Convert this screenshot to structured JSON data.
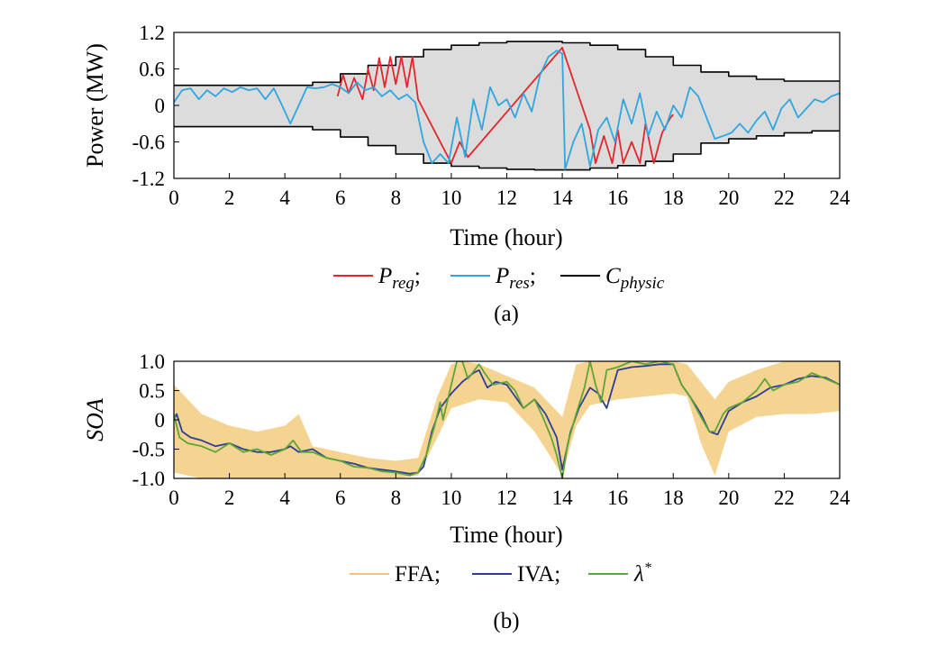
{
  "chart_data": [
    {
      "panel": "(a)",
      "type": "line",
      "xlabel": "Time (hour)",
      "ylabel": "Power (MW)",
      "xlim": [
        0,
        24
      ],
      "ylim": [
        -1.2,
        1.2
      ],
      "xticks": [
        "0",
        "2",
        "4",
        "6",
        "8",
        "10",
        "12",
        "14",
        "16",
        "18",
        "20",
        "22",
        "24"
      ],
      "yticks": [
        "1.2",
        "0.6",
        "0",
        "-0.6",
        "-1.2"
      ],
      "ytick_values": [
        1.2,
        0.6,
        0,
        -0.6,
        -1.2
      ],
      "legend": [
        {
          "base": "P",
          "sub": "reg",
          "suffix": ";",
          "color": "#e3262d"
        },
        {
          "base": "P",
          "sub": "res",
          "suffix": ";",
          "color": "#2ea6df"
        },
        {
          "base": "C",
          "sub": "physic",
          "suffix": "",
          "color": "#000000"
        }
      ],
      "band_color": "#dcdcdc",
      "series": [
        {
          "name": "Cphysic-upper",
          "color": "#000000",
          "x": [
            0,
            1,
            2,
            3,
            4,
            5,
            5,
            6,
            6,
            7,
            7,
            8,
            8,
            9,
            9,
            10,
            10,
            11,
            11,
            12,
            12,
            13,
            13,
            14,
            14,
            15,
            15,
            16,
            16,
            17,
            17,
            18,
            18,
            19,
            19,
            20,
            20,
            21,
            21,
            22,
            22,
            23,
            23,
            24
          ],
          "y": [
            0.33,
            0.33,
            0.33,
            0.33,
            0.33,
            0.33,
            0.38,
            0.38,
            0.52,
            0.52,
            0.66,
            0.66,
            0.8,
            0.8,
            0.92,
            0.92,
            0.99,
            0.99,
            1.03,
            1.03,
            1.05,
            1.05,
            1.05,
            1.05,
            1.03,
            1.03,
            0.99,
            0.99,
            0.92,
            0.92,
            0.8,
            0.8,
            0.66,
            0.66,
            0.55,
            0.55,
            0.48,
            0.48,
            0.43,
            0.43,
            0.4,
            0.4,
            0.4,
            0.4
          ]
        },
        {
          "name": "Cphysic-lower",
          "color": "#000000",
          "x": [
            0,
            5,
            5,
            6,
            6,
            7,
            7,
            8,
            8,
            9,
            9,
            10,
            10,
            11,
            11,
            12,
            12,
            13,
            13,
            14,
            14,
            15,
            15,
            16,
            16,
            17,
            17,
            18,
            18,
            19,
            19,
            20,
            20,
            21,
            21,
            22,
            22,
            23,
            23,
            24
          ],
          "y": [
            -0.35,
            -0.35,
            -0.4,
            -0.4,
            -0.52,
            -0.52,
            -0.66,
            -0.66,
            -0.8,
            -0.8,
            -0.95,
            -0.95,
            -1.0,
            -1.0,
            -1.03,
            -1.03,
            -1.05,
            -1.05,
            -1.06,
            -1.06,
            -1.06,
            -1.06,
            -1.03,
            -1.03,
            -0.99,
            -0.99,
            -0.92,
            -0.92,
            -0.8,
            -0.8,
            -0.62,
            -0.62,
            -0.55,
            -0.55,
            -0.5,
            -0.5,
            -0.45,
            -0.45,
            -0.42,
            -0.42
          ]
        },
        {
          "name": "Preg",
          "color": "#e3262d",
          "x": [
            5.9,
            6.1,
            6.3,
            6.5,
            6.8,
            7.0,
            7.2,
            7.4,
            7.6,
            7.8,
            8.0,
            8.2,
            8.4,
            8.6,
            8.8,
            10.0,
            10.3,
            10.6,
            14.0,
            15.0,
            15.2,
            15.5,
            15.8,
            16.0,
            16.2,
            16.5,
            16.8,
            17.0,
            17.3,
            17.6,
            17.9,
            18.0
          ],
          "y": [
            0.15,
            0.5,
            0.2,
            0.45,
            0.1,
            0.6,
            0.25,
            0.78,
            0.3,
            0.8,
            0.35,
            0.8,
            0.3,
            0.8,
            0.1,
            -0.95,
            -0.6,
            -0.85,
            0.95,
            -0.4,
            -0.95,
            -0.5,
            -0.95,
            -0.4,
            -0.95,
            -0.6,
            -0.95,
            -0.3,
            -0.95,
            -0.45,
            -0.2,
            -0.15
          ]
        },
        {
          "name": "Pres",
          "color": "#2ea6df",
          "x": [
            0,
            0.3,
            0.6,
            0.9,
            1.2,
            1.5,
            1.8,
            2.1,
            2.4,
            2.7,
            3.0,
            3.3,
            3.6,
            3.9,
            4.2,
            4.5,
            4.8,
            5.1,
            5.4,
            5.7,
            6.0,
            6.3,
            6.6,
            6.9,
            7.2,
            7.5,
            7.8,
            8.1,
            8.4,
            8.7,
            9.0,
            9.3,
            9.6,
            9.9,
            10.2,
            10.5,
            10.8,
            11.1,
            11.4,
            11.7,
            12.0,
            12.3,
            12.6,
            12.9,
            13.2,
            13.5,
            13.8,
            14.0,
            14.1,
            14.4,
            14.7,
            15.0,
            15.3,
            15.6,
            15.9,
            16.2,
            16.5,
            16.8,
            17.1,
            17.4,
            17.7,
            18.0,
            18.3,
            18.6,
            18.9,
            19.2,
            19.5,
            19.8,
            20.1,
            20.4,
            20.7,
            21.0,
            21.3,
            21.6,
            21.9,
            22.2,
            22.5,
            22.8,
            23.1,
            23.4,
            23.7,
            24.0
          ],
          "y": [
            0.05,
            0.25,
            0.28,
            0.1,
            0.25,
            0.15,
            0.28,
            0.22,
            0.3,
            0.25,
            0.28,
            0.1,
            0.28,
            0.0,
            -0.3,
            0.0,
            0.3,
            0.28,
            0.3,
            0.35,
            0.3,
            0.2,
            0.38,
            0.25,
            0.3,
            0.15,
            0.25,
            0.1,
            0.18,
            0.05,
            -0.6,
            -0.95,
            -0.8,
            -0.95,
            -0.2,
            -0.85,
            0.1,
            -0.4,
            0.3,
            0.0,
            0.1,
            -0.2,
            0.2,
            -0.1,
            0.5,
            0.8,
            0.9,
            0.85,
            -1.05,
            -0.6,
            -0.3,
            -1.0,
            -0.4,
            -0.2,
            -0.6,
            0.1,
            -0.3,
            0.2,
            -0.5,
            -0.1,
            -0.4,
            0.0,
            -0.2,
            0.3,
            0.15,
            -0.2,
            -0.55,
            -0.5,
            -0.45,
            -0.3,
            -0.45,
            -0.25,
            -0.1,
            -0.4,
            -0.05,
            0.1,
            -0.2,
            -0.05,
            0.1,
            0.05,
            0.15,
            0.2
          ]
        }
      ]
    },
    {
      "panel": "(b)",
      "type": "line",
      "xlabel": "Time (hour)",
      "ylabel": "SOA",
      "xlim": [
        0,
        24
      ],
      "ylim": [
        -1.0,
        1.0
      ],
      "xticks": [
        "0",
        "2",
        "4",
        "6",
        "8",
        "10",
        "12",
        "14",
        "16",
        "18",
        "20",
        "22",
        "24"
      ],
      "yticks": [
        "1.0",
        "0.5",
        "0",
        "-0.5",
        "-1.0"
      ],
      "ytick_values": [
        1.0,
        0.5,
        0,
        -0.5,
        -1.0
      ],
      "legend": [
        {
          "text": "FFA;",
          "color": "#f2c66d"
        },
        {
          "text": "IVA;",
          "color": "#2b3d99"
        },
        {
          "text": "λ",
          "sup": "*",
          "color": "#5fa436"
        }
      ],
      "series": [
        {
          "name": "FFA",
          "color": "#f2c66d",
          "band_upper": {
            "x": [
              0,
              1,
              2,
              3,
              4,
              4.5,
              5,
              6,
              7,
              8,
              8.8,
              9.5,
              10,
              10.5,
              11,
              12,
              13,
              14,
              14.5,
              15,
              16,
              17,
              18,
              18.5,
              19,
              19.5,
              20,
              21,
              22,
              23,
              24
            ],
            "y": [
              0.6,
              0.1,
              -0.1,
              -0.2,
              -0.1,
              0.1,
              -0.45,
              -0.55,
              -0.65,
              -0.7,
              -0.65,
              0.4,
              0.95,
              1.0,
              0.95,
              0.75,
              0.55,
              0.05,
              0.95,
              1.0,
              1.0,
              1.0,
              1.0,
              0.95,
              0.65,
              0.35,
              0.65,
              0.85,
              1.0,
              1.0,
              1.0
            ]
          },
          "band_lower": {
            "x": [
              0,
              1,
              2,
              3,
              4,
              5,
              6,
              7,
              8,
              8.8,
              9.5,
              10,
              11,
              12,
              13,
              14,
              14.5,
              15,
              16,
              17,
              18,
              18.5,
              19,
              19.5,
              20,
              21,
              22,
              23,
              24
            ],
            "y": [
              -0.9,
              -1.0,
              -1.0,
              -1.0,
              -1.0,
              -1.0,
              -1.0,
              -1.0,
              -1.0,
              -0.95,
              -0.3,
              0.2,
              0.35,
              0.3,
              -0.2,
              -0.95,
              -0.1,
              0.25,
              0.35,
              0.4,
              0.45,
              0.4,
              -0.4,
              -0.95,
              -0.2,
              0.05,
              0.1,
              0.1,
              0.15
            ]
          }
        },
        {
          "name": "IVA",
          "color": "#2b3d99",
          "x": [
            0,
            0.1,
            0.3,
            0.6,
            1.0,
            1.5,
            2.0,
            2.5,
            3.0,
            3.5,
            4.0,
            4.2,
            4.5,
            5.0,
            5.5,
            6.0,
            6.5,
            7.0,
            7.5,
            8.0,
            8.5,
            8.8,
            9.0,
            9.3,
            9.6,
            10.0,
            10.4,
            10.8,
            11.0,
            11.3,
            11.6,
            12.0,
            12.3,
            12.6,
            13.0,
            13.4,
            13.8,
            14.0,
            14.3,
            14.6,
            15.0,
            15.3,
            15.6,
            16.0,
            16.5,
            17.0,
            17.5,
            18.0,
            18.3,
            18.6,
            19.0,
            19.3,
            19.6,
            20.0,
            20.5,
            21.0,
            21.5,
            22.0,
            22.5,
            23.0,
            23.5,
            24.0
          ],
          "y": [
            0.0,
            0.1,
            -0.2,
            -0.3,
            -0.35,
            -0.45,
            -0.4,
            -0.5,
            -0.55,
            -0.55,
            -0.5,
            -0.45,
            -0.55,
            -0.5,
            -0.65,
            -0.7,
            -0.75,
            -0.82,
            -0.85,
            -0.88,
            -0.92,
            -0.9,
            -0.8,
            -0.2,
            0.2,
            0.45,
            0.65,
            0.8,
            0.85,
            0.55,
            0.65,
            0.6,
            0.4,
            0.2,
            0.35,
            0.1,
            -0.3,
            -0.85,
            -0.2,
            0.2,
            0.55,
            0.45,
            0.2,
            0.85,
            0.9,
            0.92,
            0.95,
            0.95,
            0.6,
            0.4,
            0.1,
            -0.2,
            -0.25,
            0.15,
            0.3,
            0.4,
            0.55,
            0.6,
            0.7,
            0.75,
            0.72,
            0.6
          ]
        },
        {
          "name": "λ*",
          "color": "#5fa436",
          "x": [
            0,
            0.2,
            0.5,
            1.0,
            1.5,
            2.0,
            2.5,
            3.0,
            3.5,
            4.0,
            4.3,
            4.6,
            5.0,
            5.5,
            6.0,
            6.5,
            7.0,
            7.5,
            8.0,
            8.5,
            8.8,
            9.1,
            9.4,
            9.6,
            9.7,
            10.0,
            10.2,
            10.4,
            10.6,
            11.0,
            11.2,
            11.5,
            12.0,
            12.3,
            12.6,
            13.0,
            13.3,
            13.6,
            13.8,
            14.0,
            14.2,
            14.5,
            14.8,
            15.0,
            15.2,
            15.4,
            15.6,
            16.0,
            16.5,
            17.0,
            17.5,
            18.0,
            18.3,
            18.6,
            19.0,
            19.3,
            19.5,
            19.8,
            20.0,
            20.5,
            21.0,
            21.3,
            21.6,
            22.0,
            22.5,
            23.0,
            23.5,
            24.0
          ],
          "y": [
            0.1,
            -0.3,
            -0.4,
            -0.45,
            -0.55,
            -0.4,
            -0.55,
            -0.5,
            -0.6,
            -0.5,
            -0.35,
            -0.55,
            -0.55,
            -0.65,
            -0.7,
            -0.8,
            -0.82,
            -0.88,
            -0.9,
            -0.95,
            -0.9,
            -0.6,
            -0.1,
            0.3,
            0.0,
            0.6,
            1.0,
            1.0,
            0.7,
            0.95,
            0.8,
            0.6,
            0.65,
            0.5,
            0.2,
            0.35,
            0.05,
            -0.3,
            -0.6,
            -1.0,
            -0.4,
            0.1,
            0.55,
            1.0,
            0.6,
            0.3,
            0.85,
            0.9,
            1.0,
            0.95,
            1.0,
            0.95,
            0.6,
            0.4,
            0.05,
            -0.2,
            -0.2,
            0.1,
            0.2,
            0.3,
            0.5,
            0.7,
            0.5,
            0.6,
            0.65,
            0.8,
            0.7,
            0.6
          ]
        }
      ]
    }
  ]
}
